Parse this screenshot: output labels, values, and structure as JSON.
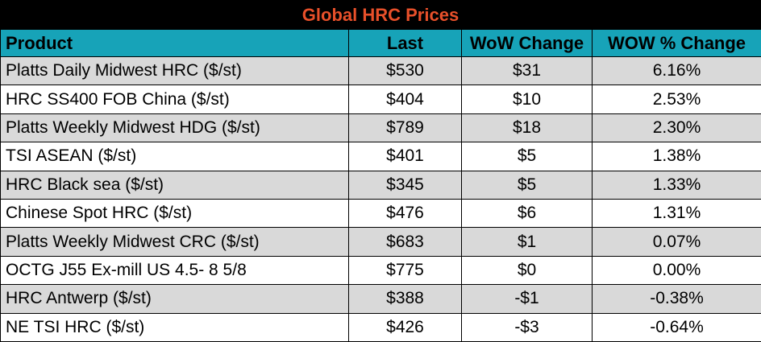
{
  "table": {
    "title": "Global HRC Prices",
    "headers": [
      "Product",
      "Last",
      "WoW Change",
      "WOW % Change"
    ],
    "rows": [
      [
        "Platts Daily Midwest HRC ($/st)",
        "$530",
        "$31",
        "6.16%"
      ],
      [
        "HRC SS400 FOB China ($/st)",
        "$404",
        "$10",
        "2.53%"
      ],
      [
        "Platts Weekly Midwest HDG ($/st)",
        "$789",
        "$18",
        "2.30%"
      ],
      [
        "TSI ASEAN ($/st)",
        "$401",
        "$5",
        "1.38%"
      ],
      [
        "HRC Black sea ($/st)",
        "$345",
        "$5",
        "1.33%"
      ],
      [
        "Chinese Spot HRC ($/st)",
        "$476",
        "$6",
        "1.31%"
      ],
      [
        "Platts Weekly Midwest CRC ($/st)",
        "$683",
        "$1",
        "0.07%"
      ],
      [
        "OCTG J55 Ex-mill US 4.5- 8 5/8",
        "$775",
        "$0",
        "0.00%"
      ],
      [
        "HRC Antwerp ($/st)",
        "$388",
        "-$1",
        "-0.38%"
      ],
      [
        "NE TSI HRC ($/st)",
        "$426",
        "-$3",
        "-0.64%"
      ]
    ],
    "colors": {
      "title_bg": "#000000",
      "title_text": "#e8502a",
      "header_bg": "#17a3b8",
      "row_shaded": "#d9d9d9",
      "row_plain": "#ffffff"
    }
  }
}
